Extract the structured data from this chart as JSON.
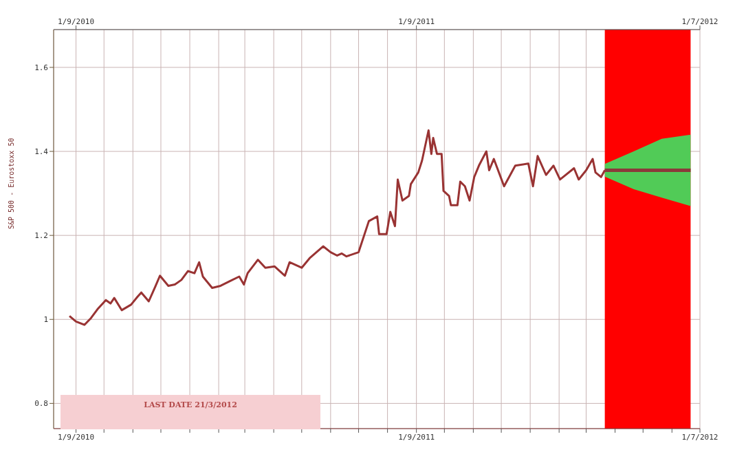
{
  "chart_data": {
    "type": "line",
    "ylabel": "S&P 500 - Eurostoxx 50",
    "annotations": [
      "LAST DATE  21/3/2012"
    ],
    "xlim": [
      "2010-08-08",
      "2012-07-01"
    ],
    "xticks": [
      {
        "value": "2010-09-01",
        "label": "1/9/2010"
      },
      {
        "value": "2010-10-01",
        "label": null
      },
      {
        "value": "2010-11-01",
        "label": null
      },
      {
        "value": "2010-12-01",
        "label": null
      },
      {
        "value": "2011-01-01",
        "label": null
      },
      {
        "value": "2011-02-01",
        "label": null
      },
      {
        "value": "2011-03-01",
        "label": null
      },
      {
        "value": "2011-04-01",
        "label": null
      },
      {
        "value": "2011-05-01",
        "label": null
      },
      {
        "value": "2011-06-01",
        "label": null
      },
      {
        "value": "2011-07-01",
        "label": null
      },
      {
        "value": "2011-08-01",
        "label": null
      },
      {
        "value": "2011-09-01",
        "label": "1/9/2011"
      },
      {
        "value": "2011-10-01",
        "label": null
      },
      {
        "value": "2011-11-01",
        "label": null
      },
      {
        "value": "2011-12-01",
        "label": null
      },
      {
        "value": "2012-01-01",
        "label": null
      },
      {
        "value": "2012-02-01",
        "label": null
      },
      {
        "value": "2012-03-01",
        "label": null
      },
      {
        "value": "2012-04-01",
        "label": null
      },
      {
        "value": "2012-05-01",
        "label": null
      },
      {
        "value": "2012-06-01",
        "label": null
      },
      {
        "value": "2012-07-01",
        "label": "1/7/2012"
      }
    ],
    "x2lim": [
      "2010-08-08",
      "2012-07-01"
    ],
    "x2ticks": [
      {
        "value": "2010-09-01",
        "label": "1/9/2010"
      },
      {
        "value": "2011-09-01",
        "label": "1/9/2011"
      },
      {
        "value": "2012-07-01",
        "label": "1/7/2012"
      }
    ],
    "ylim": [
      0.74,
      1.69
    ],
    "yticks": [
      0.8,
      1,
      1.2,
      1.4,
      1.6
    ],
    "grid": true,
    "bands": [
      {
        "axis": "x",
        "from": "2012-03-21",
        "to": "2012-06-21",
        "color": "#ff0000"
      }
    ],
    "series": [
      {
        "color": "#993333",
        "x": [
          "2010-08-25",
          "2010-09-01",
          "2010-09-10",
          "2010-09-17",
          "2010-09-24",
          "2010-10-03",
          "2010-10-08",
          "2010-10-12",
          "2010-10-20",
          "2010-10-30",
          "2010-11-06",
          "2010-11-10",
          "2010-11-18",
          "2010-11-25",
          "2010-11-30",
          "2010-12-09",
          "2010-12-16",
          "2010-12-23",
          "2010-12-30",
          "2011-01-06",
          "2011-01-11",
          "2011-01-15",
          "2011-01-25",
          "2011-02-03",
          "2011-02-13",
          "2011-02-23",
          "2011-02-28",
          "2011-03-04",
          "2011-03-15",
          "2011-03-23",
          "2011-04-02",
          "2011-04-13",
          "2011-04-18",
          "2011-05-01",
          "2011-05-10",
          "2011-05-24",
          "2011-06-01",
          "2011-06-08",
          "2011-06-13",
          "2011-06-18",
          "2011-07-01",
          "2011-07-12",
          "2011-07-21",
          "2011-07-23",
          "2011-07-31",
          "2011-08-04",
          "2011-08-09",
          "2011-08-12",
          "2011-08-17",
          "2011-08-24",
          "2011-08-26",
          "2011-09-03",
          "2011-09-07",
          "2011-09-14",
          "2011-09-17",
          "2011-09-19",
          "2011-09-23",
          "2011-09-28",
          "2011-09-30",
          "2011-10-06",
          "2011-10-08",
          "2011-10-15",
          "2011-10-18",
          "2011-10-23",
          "2011-10-28",
          "2011-11-02",
          "2011-11-07",
          "2011-11-15",
          "2011-11-18",
          "2011-11-23",
          "2011-12-04",
          "2011-12-16",
          "2011-12-30",
          "2012-01-04",
          "2012-01-09",
          "2012-01-18",
          "2012-01-26",
          "2012-02-02",
          "2012-02-17",
          "2012-02-22",
          "2012-03-01",
          "2012-03-08",
          "2012-03-11",
          "2012-03-17",
          "2012-03-21"
        ],
        "values": [
          1.008,
          0.995,
          0.987,
          1.003,
          1.024,
          1.046,
          1.038,
          1.051,
          1.022,
          1.035,
          1.054,
          1.064,
          1.043,
          1.078,
          1.104,
          1.08,
          1.083,
          1.094,
          1.115,
          1.11,
          1.136,
          1.102,
          1.075,
          1.08,
          1.091,
          1.102,
          1.083,
          1.11,
          1.142,
          1.123,
          1.126,
          1.104,
          1.136,
          1.123,
          1.147,
          1.174,
          1.16,
          1.152,
          1.157,
          1.15,
          1.16,
          1.234,
          1.245,
          1.203,
          1.203,
          1.256,
          1.222,
          1.333,
          1.283,
          1.294,
          1.322,
          1.35,
          1.378,
          1.45,
          1.394,
          1.432,
          1.394,
          1.394,
          1.306,
          1.294,
          1.272,
          1.272,
          1.328,
          1.317,
          1.283,
          1.339,
          1.366,
          1.4,
          1.355,
          1.382,
          1.317,
          1.366,
          1.371,
          1.317,
          1.389,
          1.344,
          1.366,
          1.333,
          1.36,
          1.333,
          1.355,
          1.382,
          1.35,
          1.339,
          1.355
        ]
      },
      {
        "color": "#8b3a3a",
        "x": [
          "2012-03-21",
          "2012-04-21",
          "2012-05-21",
          "2012-06-21"
        ],
        "values": [
          1.355,
          1.355,
          1.355,
          1.355
        ],
        "lower": [
          1.34,
          1.31,
          1.29,
          1.27
        ],
        "upper": [
          1.37,
          1.4,
          1.43,
          1.44
        ]
      }
    ]
  }
}
